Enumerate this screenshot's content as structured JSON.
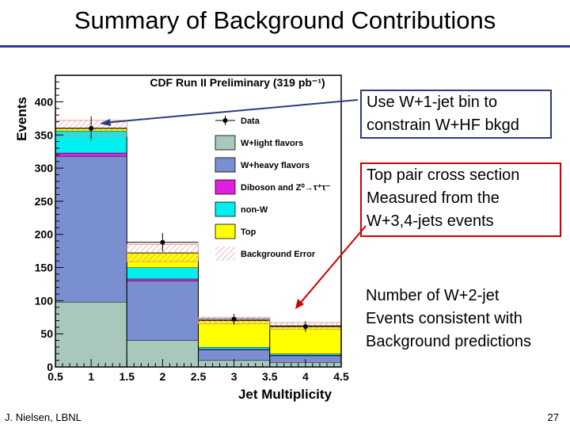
{
  "slide": {
    "title": "Summary of Background Contributions",
    "footer_left": "J. Nielsen, LBNL",
    "footer_right": "27"
  },
  "callouts": [
    {
      "lines": [
        "Use W+1-jet bin to",
        "constrain W+HF bkgd"
      ]
    },
    {
      "lines": [
        "Top pair cross section",
        "Measured from the",
        "W+3,4-jets events"
      ]
    },
    {
      "lines": [
        "Number of W+2-jet",
        "Events consistent with",
        "Background predictions"
      ]
    }
  ],
  "colors": {
    "title_rule": "#3333aa",
    "callout1_border": "#2c3d7a",
    "callout2_border": "#cc0000",
    "arrow1": "#2c3d7a",
    "arrow2": "#cc0000"
  },
  "chart_data": {
    "type": "bar",
    "stacked": true,
    "title": "CDF Run II Preliminary (319 pb⁻¹)",
    "xlabel": "Jet Multiplicity",
    "ylabel": "Events",
    "xlim": [
      0.5,
      4.5
    ],
    "ylim": [
      0,
      440
    ],
    "xticks": [
      "0.5",
      "1",
      "1.5",
      "2",
      "2.5",
      "3",
      "3.5",
      "4",
      "4.5"
    ],
    "yticks": [
      "0",
      "50",
      "100",
      "150",
      "200",
      "250",
      "300",
      "350",
      "400"
    ],
    "bin_edges": [
      0.5,
      1.5,
      2.5,
      3.5,
      4.5
    ],
    "categories": [
      "1",
      "2",
      "3",
      "4"
    ],
    "series": [
      {
        "name": "W+light flavors",
        "color": "#a9c8bc",
        "values": [
          98,
          40,
          10,
          7
        ]
      },
      {
        "name": "W+heavy flavors",
        "color": "#7a8fcf",
        "values": [
          220,
          90,
          16,
          10
        ]
      },
      {
        "name": "Diboson and Z⁰→τ⁺τ⁻",
        "color": "#e020e0",
        "values": [
          5,
          3,
          1,
          1
        ]
      },
      {
        "name": "non-W",
        "color": "#00f0f0",
        "values": [
          33,
          17,
          3,
          2
        ]
      },
      {
        "name": "Top",
        "color": "#ffff00",
        "values": [
          4,
          22,
          40,
          42
        ]
      }
    ],
    "data": {
      "name": "Data",
      "values": [
        360,
        188,
        72,
        61
      ],
      "errors": [
        18,
        14,
        8,
        8
      ]
    },
    "background_error": {
      "name": "Background Error",
      "values": [
        12,
        13,
        5,
        5
      ]
    },
    "legend": "top-right",
    "legend_entries": [
      "Data",
      "W+light flavors",
      "W+heavy flavors",
      "Diboson and Z⁰→τ⁺τ⁻",
      "non-W",
      "Top",
      "Background Error"
    ]
  }
}
